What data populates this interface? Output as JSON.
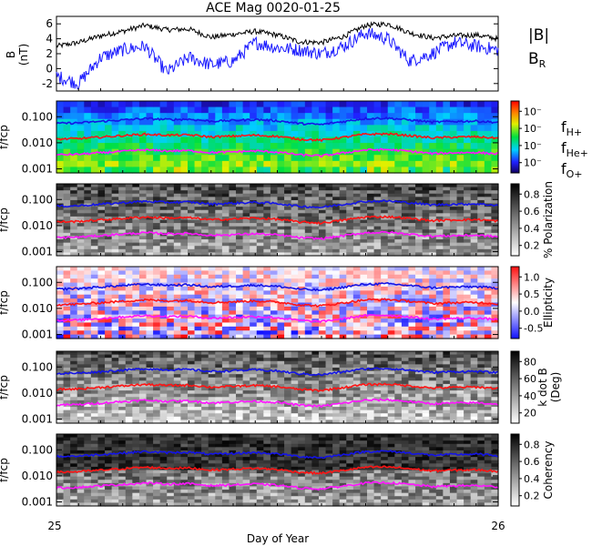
{
  "title": "ACE Mag 0020-01-25",
  "x_axis": {
    "label": "Day of Year",
    "start_label": "25",
    "end_label": "26",
    "range": [
      25,
      26
    ]
  },
  "colors": {
    "B_total": "#000000",
    "B_R": "#1a1aff",
    "f_H": "#1414e6",
    "f_He": "#ff1414",
    "f_O": "#ff14ff"
  },
  "chart_data": [
    {
      "type": "line",
      "ylabel_line1": "B",
      "ylabel_line2": "(nT)",
      "ylim": [
        -3,
        7
      ],
      "yticks": [
        "-2",
        "0",
        "2",
        "4",
        "6"
      ],
      "series": [
        {
          "name": "|B|",
          "color": "#000000",
          "x": [
            25.0,
            25.05,
            25.1,
            25.15,
            25.2,
            25.25,
            25.3,
            25.35,
            25.4,
            25.45,
            25.5,
            25.55,
            25.6,
            25.65,
            25.7,
            25.75,
            25.8,
            25.85,
            25.9,
            25.95,
            26.0
          ],
          "y": [
            3.0,
            3.5,
            4.4,
            5.0,
            5.8,
            5.2,
            5.3,
            4.2,
            4.6,
            5.0,
            4.5,
            3.6,
            3.5,
            4.3,
            5.8,
            6.0,
            4.8,
            4.1,
            4.4,
            4.5,
            4.0
          ]
        },
        {
          "name": "B_R",
          "color": "#1a1aff",
          "x": [
            25.0,
            25.05,
            25.1,
            25.15,
            25.2,
            25.25,
            25.3,
            25.35,
            25.4,
            25.45,
            25.5,
            25.55,
            25.6,
            25.65,
            25.7,
            25.75,
            25.8,
            25.85,
            25.9,
            25.95,
            26.0
          ],
          "y": [
            -1.0,
            -2.0,
            1.5,
            2.5,
            3.0,
            -0.5,
            1.5,
            0.5,
            1.0,
            3.5,
            2.8,
            2.5,
            2.0,
            3.0,
            4.8,
            4.0,
            1.0,
            2.0,
            3.5,
            3.0,
            2.5
          ]
        }
      ],
      "legend": [
        "|B|",
        "B_R"
      ]
    },
    {
      "type": "heatmap",
      "ylabel": "f/fcp",
      "ylim": [
        0.0007,
        0.4
      ],
      "yscale": "log",
      "yticks": [
        "0.001",
        "0.010",
        "0.100"
      ],
      "colorbar": {
        "label": "",
        "ticks": [
          "10⁻",
          "10⁻",
          "10⁻",
          "10⁻"
        ],
        "colormap": "rainbow"
      },
      "legend": [
        "f_H+",
        "f_He+",
        "f_O+"
      ]
    },
    {
      "type": "heatmap",
      "ylabel": "f/fcp",
      "yscale": "log",
      "yticks": [
        "0.001",
        "0.010",
        "0.100"
      ],
      "colorbar": {
        "label": "% Polarization",
        "ticks": [
          "0.2",
          "0.4",
          "0.6",
          "0.8"
        ],
        "colormap": "grayscale"
      }
    },
    {
      "type": "heatmap",
      "ylabel": "f/fcp",
      "yscale": "log",
      "yticks": [
        "0.001",
        "0.010",
        "0.100"
      ],
      "colorbar": {
        "label": "Ellipticity",
        "ticks": [
          "-0.5",
          "0.0",
          "0.5",
          "1.0"
        ],
        "colormap": "blue-white-red"
      }
    },
    {
      "type": "heatmap",
      "ylabel": "f/fcp",
      "yscale": "log",
      "yticks": [
        "0.001",
        "0.010",
        "0.100"
      ],
      "colorbar": {
        "label": "k dot B",
        "label2": "(Deg)",
        "ticks": [
          "20",
          "40",
          "60",
          "80"
        ],
        "colormap": "grayscale"
      }
    },
    {
      "type": "heatmap",
      "ylabel": "f/fcp",
      "yscale": "log",
      "yticks": [
        "0.001",
        "0.010",
        "0.100"
      ],
      "colorbar": {
        "label": "Coherency",
        "ticks": [
          "0.2",
          "0.4",
          "0.6",
          "0.8"
        ],
        "colormap": "grayscale"
      }
    }
  ],
  "gyro_lines": {
    "x": [
      25.0,
      25.05,
      25.1,
      25.15,
      25.2,
      25.25,
      25.3,
      25.35,
      25.4,
      25.45,
      25.5,
      25.55,
      25.6,
      25.65,
      25.7,
      25.75,
      25.8,
      25.85,
      25.9,
      25.95,
      26.0
    ],
    "f_H": [
      0.055,
      0.058,
      0.066,
      0.075,
      0.085,
      0.078,
      0.08,
      0.067,
      0.072,
      0.078,
      0.07,
      0.055,
      0.05,
      0.065,
      0.085,
      0.088,
      0.075,
      0.062,
      0.066,
      0.068,
      0.06
    ],
    "f_He_ratio": 0.25,
    "f_O_ratio": 0.0625
  }
}
